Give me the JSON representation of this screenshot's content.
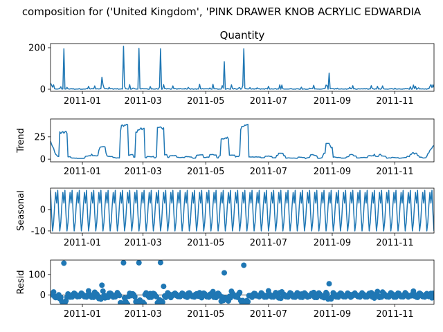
{
  "figure_title": "composition for ('United Kingdom', 'PINK DRAWER KNOB ACRYLIC EDWARDIA",
  "line_color": "#1f77b4",
  "chart_data": [
    {
      "type": "line",
      "title": "Quantity",
      "ylabel": "",
      "x_ticks": [
        "2011-01",
        "2011-03",
        "2011-05",
        "2011-07",
        "2011-09",
        "2011-11"
      ],
      "y_ticks": [
        "0",
        "200"
      ],
      "ylim": [
        -10,
        220
      ],
      "peaks": [
        {
          "date": "2010-12-14",
          "value": 195
        },
        {
          "date": "2011-01-20",
          "value": 58
        },
        {
          "date": "2011-02-10",
          "value": 207
        },
        {
          "date": "2011-02-25",
          "value": 197
        },
        {
          "date": "2011-03-18",
          "value": 195
        },
        {
          "date": "2011-05-19",
          "value": 133
        },
        {
          "date": "2011-06-07",
          "value": 195
        },
        {
          "date": "2011-08-29",
          "value": 78
        }
      ]
    },
    {
      "type": "line",
      "title": "",
      "ylabel": "Trend",
      "x_ticks": [
        "2011-01",
        "2011-03",
        "2011-05",
        "2011-07",
        "2011-09",
        "2011-11"
      ],
      "y_ticks": [
        "0",
        "25"
      ],
      "ylim": [
        -3,
        45
      ],
      "plateaus": [
        {
          "start": "2010-12-10",
          "end": "2010-12-17",
          "value": 30
        },
        {
          "start": "2011-02-08",
          "end": "2011-02-14",
          "value": 38
        },
        {
          "start": "2011-02-24",
          "end": "2011-03-02",
          "value": 34
        },
        {
          "start": "2011-03-15",
          "end": "2011-03-21",
          "value": 35
        },
        {
          "start": "2011-05-17",
          "end": "2011-05-23",
          "value": 24
        },
        {
          "start": "2011-06-05",
          "end": "2011-06-11",
          "value": 38
        }
      ]
    },
    {
      "type": "line",
      "title": "",
      "ylabel": "Seasonal",
      "x_ticks": [
        "2011-01",
        "2011-03",
        "2011-05",
        "2011-07",
        "2011-09",
        "2011-11"
      ],
      "y_ticks": [
        "-10",
        "0"
      ],
      "ylim": [
        -11,
        10
      ],
      "period_days": 7,
      "amplitude": [
        -10,
        9
      ]
    },
    {
      "type": "scatter",
      "title": "",
      "ylabel": "Resid",
      "x_ticks": [
        "2011-01",
        "2011-03",
        "2011-05",
        "2011-07",
        "2011-09",
        "2011-11"
      ],
      "y_ticks": [
        "0",
        "100"
      ],
      "ylim": [
        -45,
        170
      ],
      "outliers": [
        {
          "date": "2010-12-14",
          "value": 155
        },
        {
          "date": "2011-01-20",
          "value": 48
        },
        {
          "date": "2011-02-10",
          "value": 157
        },
        {
          "date": "2011-02-25",
          "value": 157
        },
        {
          "date": "2011-03-18",
          "value": 158
        },
        {
          "date": "2011-03-21",
          "value": 42
        },
        {
          "date": "2011-05-19",
          "value": 108
        },
        {
          "date": "2011-06-07",
          "value": 145
        },
        {
          "date": "2011-08-29",
          "value": 55
        }
      ]
    }
  ]
}
